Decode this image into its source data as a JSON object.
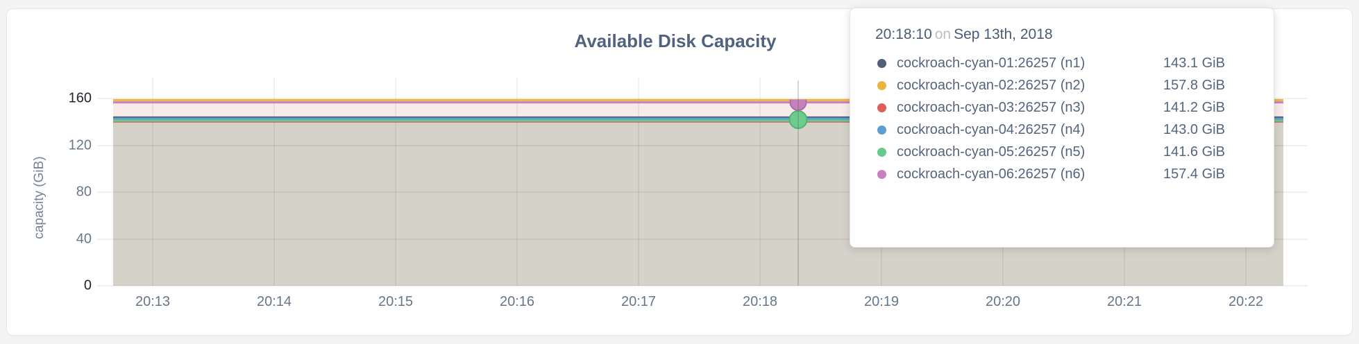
{
  "chart": {
    "title": "Available Disk Capacity",
    "y_axis": {
      "label": "capacity (GiB)",
      "ticks": [
        "0",
        "40",
        "80",
        "120",
        "160"
      ]
    },
    "x_axis": {
      "ticks": [
        "20:13",
        "20:14",
        "20:15",
        "20:16",
        "20:17",
        "20:18",
        "20:19",
        "20:20",
        "20:21",
        "20:22"
      ]
    }
  },
  "tooltip": {
    "time": "20:18:10",
    "conjunction": "on",
    "date": "Sep 13th, 2018",
    "rows": [
      {
        "name": "cockroach-cyan-01:26257 (n1)",
        "value": "143.1 GiB",
        "color": "#525f76"
      },
      {
        "name": "cockroach-cyan-02:26257 (n2)",
        "value": "157.8 GiB",
        "color": "#eab43e"
      },
      {
        "name": "cockroach-cyan-03:26257 (n3)",
        "value": "141.2 GiB",
        "color": "#dc5f5a"
      },
      {
        "name": "cockroach-cyan-04:26257 (n4)",
        "value": "143.0 GiB",
        "color": "#5d9fd3"
      },
      {
        "name": "cockroach-cyan-05:26257 (n5)",
        "value": "141.6 GiB",
        "color": "#67c98a"
      },
      {
        "name": "cockroach-cyan-06:26257 (n6)",
        "value": "157.4 GiB",
        "color": "#ca7fbf"
      }
    ]
  },
  "chart_data": {
    "type": "area",
    "title": "Available Disk Capacity",
    "xlabel": "",
    "ylabel": "capacity (GiB)",
    "ylim": [
      0,
      160
    ],
    "grid": true,
    "x_ticks": [
      "20:13",
      "20:14",
      "20:15",
      "20:16",
      "20:17",
      "20:18",
      "20:19",
      "20:20",
      "20:21",
      "20:22"
    ],
    "x_range": [
      "20:12:40",
      "20:22:30"
    ],
    "hover_point": {
      "time": "20:18:10",
      "date": "Sep 13th, 2018"
    },
    "series": [
      {
        "name": "cockroach-cyan-01:26257 (n1)",
        "node": "n1",
        "color": "#525f76",
        "value_gib": 143.1,
        "shape": "flat line across full x range"
      },
      {
        "name": "cockroach-cyan-02:26257 (n2)",
        "node": "n2",
        "color": "#eab43e",
        "value_gib": 157.8,
        "shape": "flat line across full x range"
      },
      {
        "name": "cockroach-cyan-03:26257 (n3)",
        "node": "n3",
        "color": "#dc5f5a",
        "value_gib": 141.2,
        "shape": "flat line across full x range"
      },
      {
        "name": "cockroach-cyan-04:26257 (n4)",
        "node": "n4",
        "color": "#5d9fd3",
        "value_gib": 143.0,
        "shape": "flat line across full x range"
      },
      {
        "name": "cockroach-cyan-05:26257 (n5)",
        "node": "n5",
        "color": "#67c98a",
        "value_gib": 141.6,
        "shape": "flat line across full x range"
      },
      {
        "name": "cockroach-cyan-06:26257 (n6)",
        "node": "n6",
        "color": "#ca7fbf",
        "value_gib": 157.4,
        "shape": "flat line across full x range"
      }
    ],
    "fills": {
      "upper_band": "#f8ecea",
      "lower_band": "#d5d2ca"
    },
    "legend_position": "tooltip-only"
  }
}
